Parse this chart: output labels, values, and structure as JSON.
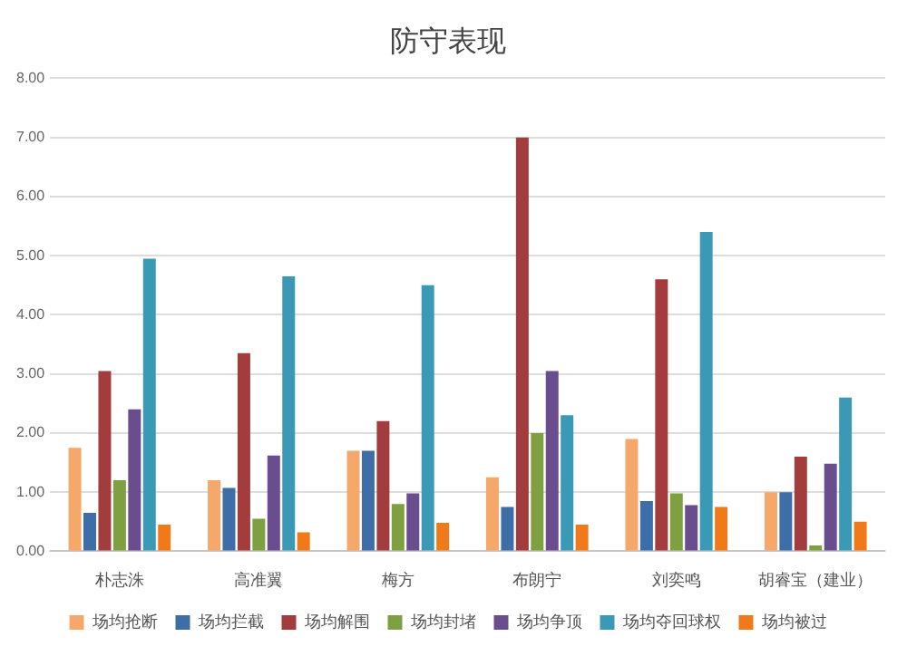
{
  "chart_data": {
    "type": "bar",
    "title": "防守表现",
    "categories": [
      "朴志洙",
      "高准翼",
      "梅方",
      "布朗宁",
      "刘奕鸣",
      "胡睿宝（建业）"
    ],
    "series": [
      {
        "name": "场均抢断",
        "color": "#f5a86a",
        "values": [
          1.75,
          1.2,
          1.7,
          1.25,
          1.9,
          1.0
        ]
      },
      {
        "name": "场均拦截",
        "color": "#3e6ea8",
        "values": [
          0.65,
          1.07,
          1.7,
          0.75,
          0.85,
          1.0
        ]
      },
      {
        "name": "场均解围",
        "color": "#a33c3c",
        "values": [
          3.05,
          3.35,
          2.2,
          7.0,
          4.6,
          1.6
        ]
      },
      {
        "name": "场均封堵",
        "color": "#7fa040",
        "values": [
          1.2,
          0.55,
          0.8,
          2.0,
          0.98,
          0.1
        ]
      },
      {
        "name": "场均争顶",
        "color": "#6a4d8e",
        "values": [
          2.4,
          1.62,
          0.98,
          3.05,
          0.78,
          1.48
        ]
      },
      {
        "name": "场均夺回球权",
        "color": "#3a9ab5",
        "values": [
          4.95,
          4.65,
          4.5,
          2.3,
          5.4,
          2.6
        ]
      },
      {
        "name": "场均被过",
        "color": "#f07a1a",
        "values": [
          0.45,
          0.32,
          0.48,
          0.45,
          0.75,
          0.5
        ]
      }
    ],
    "ylim": [
      0,
      8
    ],
    "yticks": [
      {
        "value": 0,
        "label": "0.00"
      },
      {
        "value": 1,
        "label": "1.00"
      },
      {
        "value": 2,
        "label": "2.00"
      },
      {
        "value": 3,
        "label": "3.00"
      },
      {
        "value": 4,
        "label": "4.00"
      },
      {
        "value": 5,
        "label": "5.00"
      },
      {
        "value": 6,
        "label": "6.00"
      },
      {
        "value": 7,
        "label": "7.00"
      },
      {
        "value": 8,
        "label": "8.00"
      }
    ],
    "grid": "y",
    "legend": "bottom"
  }
}
